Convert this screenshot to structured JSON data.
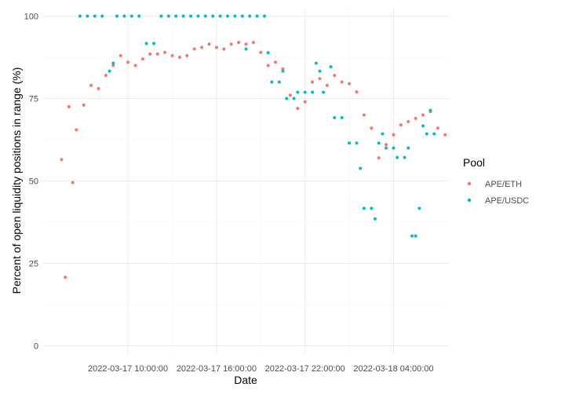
{
  "chart_data": {
    "type": "scatter",
    "x_label": "Date",
    "y_label": "Percent of open liquidity positions in range (%)",
    "legend_title": "Pool",
    "legend_position": "right",
    "grid": true,
    "xlim": [
      "2022-03-17 04:15:00",
      "2022-03-18 07:45:00"
    ],
    "xticks": [
      "2022-03-17 10:00:00",
      "2022-03-17 16:00:00",
      "2022-03-17 22:00:00",
      "2022-03-18 04:00:00"
    ],
    "ylim": [
      -2.5,
      102.5
    ],
    "yticks": [
      0,
      25,
      50,
      75,
      100
    ],
    "series": [
      {
        "name": "APE/ETH",
        "color": "#F8766D",
        "x": [
          "2022-03-17 05:30:00",
          "2022-03-17 05:45:00",
          "2022-03-17 06:00:00",
          "2022-03-17 06:15:00",
          "2022-03-17 06:30:00",
          "2022-03-17 07:00:00",
          "2022-03-17 07:30:00",
          "2022-03-17 08:00:00",
          "2022-03-17 08:30:00",
          "2022-03-17 09:00:00",
          "2022-03-17 09:30:00",
          "2022-03-17 10:00:00",
          "2022-03-17 10:30:00",
          "2022-03-17 11:00:00",
          "2022-03-17 11:30:00",
          "2022-03-17 12:00:00",
          "2022-03-17 12:30:00",
          "2022-03-17 13:00:00",
          "2022-03-17 13:30:00",
          "2022-03-17 14:00:00",
          "2022-03-17 14:30:00",
          "2022-03-17 15:00:00",
          "2022-03-17 15:30:00",
          "2022-03-17 16:00:00",
          "2022-03-17 16:30:00",
          "2022-03-17 17:00:00",
          "2022-03-17 17:30:00",
          "2022-03-17 18:00:00",
          "2022-03-17 18:30:00",
          "2022-03-17 19:00:00",
          "2022-03-17 19:30:00",
          "2022-03-17 20:00:00",
          "2022-03-17 20:30:00",
          "2022-03-17 21:00:00",
          "2022-03-17 21:30:00",
          "2022-03-17 22:00:00",
          "2022-03-17 22:30:00",
          "2022-03-17 23:00:00",
          "2022-03-17 23:30:00",
          "2022-03-18 00:00:00",
          "2022-03-18 00:30:00",
          "2022-03-18 01:00:00",
          "2022-03-18 01:30:00",
          "2022-03-18 02:00:00",
          "2022-03-18 02:30:00",
          "2022-03-18 03:00:00",
          "2022-03-18 03:30:00",
          "2022-03-18 04:00:00",
          "2022-03-18 04:30:00",
          "2022-03-18 05:00:00",
          "2022-03-18 05:30:00",
          "2022-03-18 06:00:00",
          "2022-03-18 06:30:00",
          "2022-03-18 07:00:00",
          "2022-03-18 07:30:00"
        ],
        "values": [
          56.5,
          20.8,
          72.5,
          49.5,
          65.5,
          73,
          79,
          78,
          82,
          85,
          88,
          86,
          85,
          87,
          88.5,
          88.5,
          89,
          88,
          87.5,
          88,
          90,
          90.5,
          91.5,
          90.5,
          90,
          91.5,
          92,
          91.5,
          92,
          89,
          85,
          86,
          84,
          76,
          72,
          74,
          80,
          81,
          79,
          82,
          80,
          79.5,
          77,
          70,
          66,
          57,
          61,
          64,
          67,
          68,
          69,
          70,
          71,
          66,
          64
        ]
      },
      {
        "name": "APE/USDC",
        "color": "#00BFC4",
        "x": [
          "2022-03-17 06:45:00",
          "2022-03-17 07:15:00",
          "2022-03-17 07:45:00",
          "2022-03-17 08:15:00",
          "2022-03-17 08:45:00",
          "2022-03-17 09:00:00",
          "2022-03-17 09:15:00",
          "2022-03-17 09:45:00",
          "2022-03-17 10:15:00",
          "2022-03-17 10:45:00",
          "2022-03-17 11:15:00",
          "2022-03-17 11:45:00",
          "2022-03-17 12:15:00",
          "2022-03-17 12:45:00",
          "2022-03-17 13:15:00",
          "2022-03-17 13:45:00",
          "2022-03-17 14:15:00",
          "2022-03-17 14:45:00",
          "2022-03-17 15:15:00",
          "2022-03-17 15:45:00",
          "2022-03-17 16:15:00",
          "2022-03-17 16:45:00",
          "2022-03-17 17:15:00",
          "2022-03-17 17:45:00",
          "2022-03-17 18:00:00",
          "2022-03-17 18:15:00",
          "2022-03-17 18:45:00",
          "2022-03-17 19:15:00",
          "2022-03-17 19:30:00",
          "2022-03-17 19:45:00",
          "2022-03-17 20:15:00",
          "2022-03-17 20:30:00",
          "2022-03-17 20:45:00",
          "2022-03-17 21:15:00",
          "2022-03-17 21:30:00",
          "2022-03-17 22:00:00",
          "2022-03-17 22:30:00",
          "2022-03-17 22:45:00",
          "2022-03-17 23:00:00",
          "2022-03-17 23:15:00",
          "2022-03-17 23:45:00",
          "2022-03-18 00:00:00",
          "2022-03-18 00:30:00",
          "2022-03-18 01:00:00",
          "2022-03-18 01:30:00",
          "2022-03-18 01:45:00",
          "2022-03-18 02:00:00",
          "2022-03-18 02:30:00",
          "2022-03-18 02:45:00",
          "2022-03-18 03:00:00",
          "2022-03-18 03:15:00",
          "2022-03-18 03:30:00",
          "2022-03-18 04:00:00",
          "2022-03-18 04:15:00",
          "2022-03-18 04:45:00",
          "2022-03-18 05:00:00",
          "2022-03-18 05:15:00",
          "2022-03-18 05:30:00",
          "2022-03-18 05:45:00",
          "2022-03-18 06:00:00",
          "2022-03-18 06:15:00",
          "2022-03-18 06:30:00",
          "2022-03-18 06:45:00"
        ],
        "values": [
          100,
          100,
          100,
          100,
          83.3,
          85.7,
          100,
          100,
          100,
          100,
          91.7,
          91.7,
          100,
          100,
          100,
          100,
          100,
          100,
          100,
          100,
          100,
          100,
          100,
          100,
          90,
          100,
          100,
          100,
          88.9,
          80,
          80,
          83.3,
          75,
          75,
          76.9,
          76.9,
          76.9,
          85.7,
          83.3,
          76.9,
          84.6,
          69.2,
          69.2,
          61.5,
          61.5,
          53.8,
          41.7,
          41.7,
          38.5,
          61.5,
          64.3,
          60,
          60,
          57.1,
          57.1,
          60,
          33.3,
          33.3,
          41.7,
          66.7,
          64.3,
          71.4,
          64.3
        ]
      }
    ]
  }
}
